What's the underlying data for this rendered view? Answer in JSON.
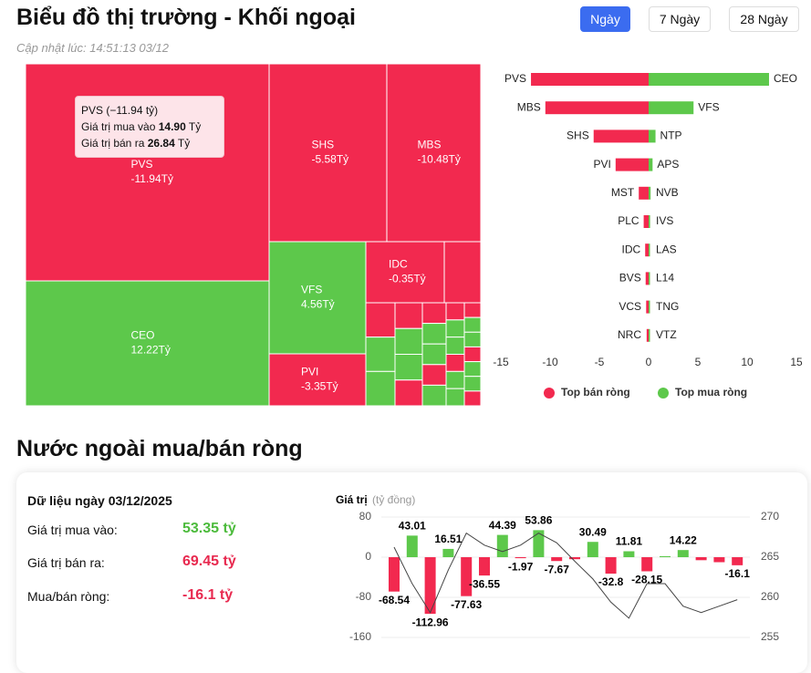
{
  "header": {
    "title": "Biểu đồ thị trường - Khối ngoại",
    "updated": "Cập nhật lúc: 14:51:13 03/12",
    "buttons": [
      "Ngày",
      "7 Ngày",
      "28 Ngày"
    ]
  },
  "tooltip": {
    "title": "PVS (−11.94 tỷ)",
    "rows": [
      {
        "label": "Giá trị mua vào",
        "value": "14.90",
        "unit": "Tỷ"
      },
      {
        "label": "Giá trị bán ra",
        "value": "26.84",
        "unit": "Tỷ"
      }
    ]
  },
  "section_title": "Nước ngoài mua/bán ròng",
  "summary": {
    "title": "Dữ liệu ngày 03/12/2025",
    "rows": [
      {
        "label": "Giá trị mua vào:",
        "value": "53.35 tỷ"
      },
      {
        "label": "Giá trị bán ra:",
        "value": "69.45 tỷ"
      },
      {
        "label": "Mua/bán ròng:",
        "value": "-16.1 tỷ"
      }
    ]
  },
  "chart_data": [
    {
      "type": "treemap",
      "categories": [
        "PVS",
        "SHS",
        "MBS",
        "CEO",
        "VFS",
        "IDC",
        "PVI"
      ],
      "values": [
        -11.94,
        -5.58,
        -10.48,
        12.22,
        4.56,
        -0.35,
        -3.35
      ],
      "value_labels": [
        "-11.94Tỷ",
        "-5.58Tỷ",
        "-10.48Tỷ",
        "12.22Tỷ",
        "4.56Tỷ",
        "-0.35Tỷ",
        "-3.35Tỷ"
      ],
      "positive_color": "#5dc84b",
      "negative_color": "#f2294f"
    },
    {
      "type": "diverging-bar",
      "xlim": [
        -15,
        15
      ],
      "xticks": [
        -15,
        -10,
        -5,
        0,
        5,
        10,
        15
      ],
      "series": [
        {
          "name": "Top bán ròng",
          "color": "#f2294f",
          "categories": [
            "PVS",
            "MBS",
            "SHS",
            "PVI",
            "MST",
            "PLC",
            "IDC",
            "BVS",
            "VCS",
            "NRC"
          ],
          "values": [
            -11.94,
            -10.48,
            -5.58,
            -3.35,
            -1.0,
            -0.5,
            -0.35,
            -0.3,
            -0.25,
            -0.2
          ]
        },
        {
          "name": "Top mua ròng",
          "color": "#5dc84b",
          "categories": [
            "CEO",
            "VFS",
            "NTP",
            "APS",
            "NVB",
            "IVS",
            "LAS",
            "L14",
            "TNG",
            "VTZ"
          ],
          "values": [
            12.22,
            4.56,
            0.7,
            0.4,
            0.2,
            0.15,
            0.1,
            0.1,
            0.08,
            0.05
          ]
        }
      ]
    },
    {
      "type": "combo",
      "y_label": "Giá trị",
      "y_unit": "(tỷ đồng)",
      "ylim": [
        -160,
        80
      ],
      "yticks": [
        -160,
        -80,
        0,
        80
      ],
      "y2lim": [
        255,
        270
      ],
      "y2ticks": [
        255,
        260,
        265,
        270
      ],
      "series": [
        {
          "type": "bar",
          "positive_color": "#5dc84b",
          "negative_color": "#f2294f",
          "values": [
            -68.54,
            43.01,
            -112.96,
            16.51,
            -77.63,
            -36.55,
            44.39,
            -1.97,
            53.86,
            -7.67,
            -4,
            30.49,
            -32.8,
            11.81,
            -28.15,
            2,
            14.22,
            -6,
            -10,
            -16.1
          ],
          "value_labels": [
            "-68.54",
            "43.01",
            "-112.96",
            "16.51",
            "-77.63",
            "-36.55",
            "44.39",
            "-1.97",
            "53.86",
            "-7.67",
            null,
            "30.49",
            "-32.8",
            "11.81",
            "-28.15",
            null,
            "14.22",
            null,
            null,
            "-16.1"
          ]
        },
        {
          "type": "line",
          "axis": "y2",
          "color": "#444444",
          "values": [
            266.25,
            261.7,
            258.1,
            263.4,
            268.0,
            266.5,
            265.7,
            266.5,
            268.0,
            266.8,
            264.5,
            262.3,
            259.4,
            257.4,
            261.7,
            261.7,
            258.9,
            258.1,
            258.9,
            259.7
          ]
        }
      ]
    }
  ]
}
